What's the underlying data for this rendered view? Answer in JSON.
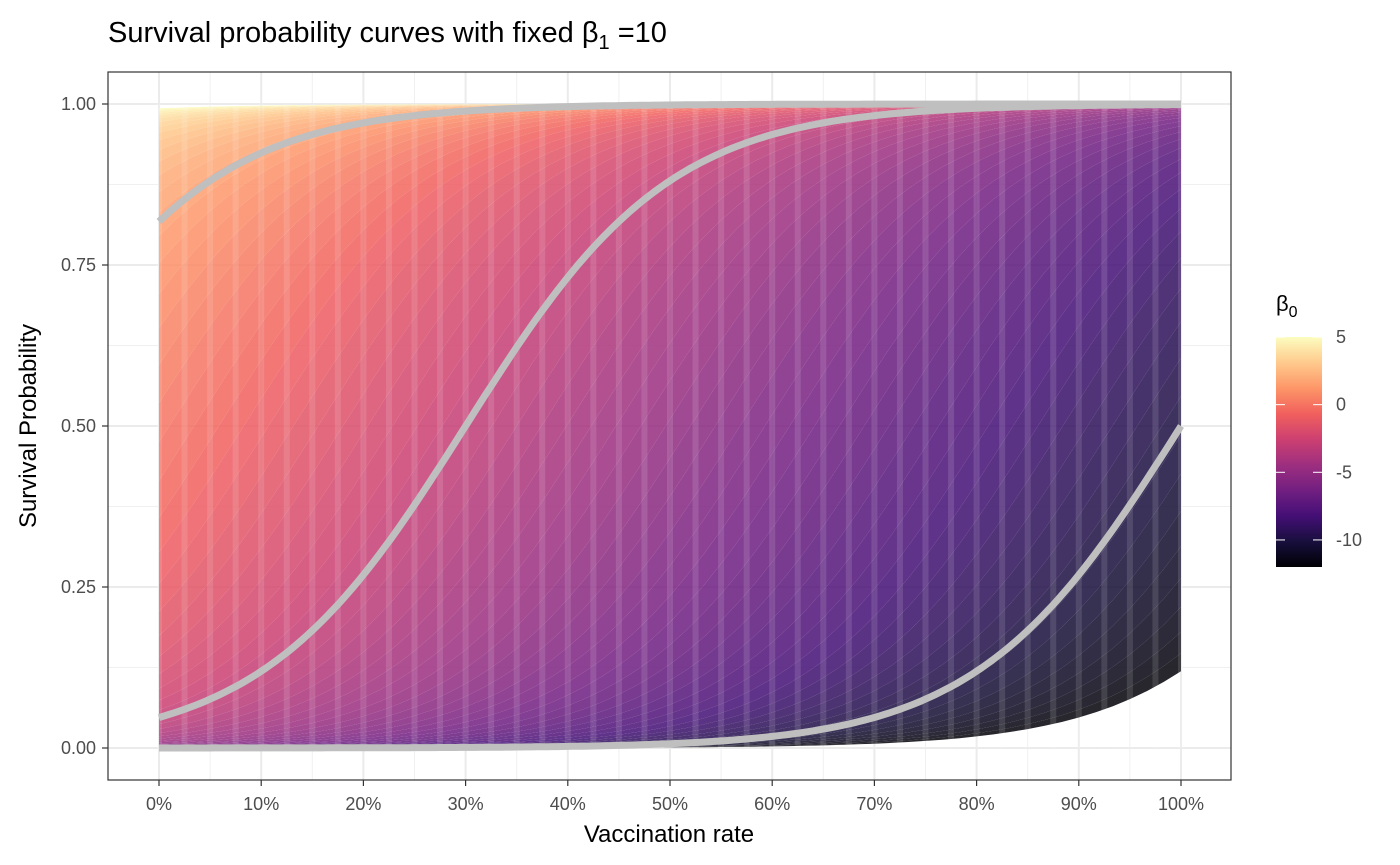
{
  "chart_data": {
    "type": "line",
    "title": {
      "prefix": "Survival probability curves with fixed ",
      "symbol": "β",
      "subscript": "1",
      "suffix": " =10"
    },
    "beta1": 10,
    "xlabel": "Vaccination rate",
    "ylabel": "Survival Probability",
    "xlim": [
      0,
      1
    ],
    "ylim": [
      0,
      1
    ],
    "x_ticks": [
      0,
      0.1,
      0.2,
      0.3,
      0.4,
      0.5,
      0.6,
      0.7,
      0.8,
      0.9,
      1.0
    ],
    "x_tick_labels": [
      "0%",
      "10%",
      "20%",
      "30%",
      "40%",
      "50%",
      "60%",
      "70%",
      "80%",
      "90%",
      "100%"
    ],
    "y_ticks": [
      0,
      0.25,
      0.5,
      0.75,
      1.0
    ],
    "y_tick_labels": [
      "0.00",
      "0.25",
      "0.50",
      "0.75",
      "1.00"
    ],
    "grid": true,
    "curve_color": "#bfbfbf",
    "series": [
      {
        "beta0": 1.5
      },
      {
        "beta0": -3
      },
      {
        "beta0": -10
      }
    ],
    "color_scale": {
      "name": "magma",
      "title_symbol": "β",
      "title_subscript": "0",
      "range": [
        -12,
        5
      ],
      "ticks": [
        5,
        0,
        -5,
        -10
      ],
      "tick_labels": [
        "5",
        "0",
        "-5",
        "-10"
      ],
      "stops": [
        "#000004",
        "#180f3d",
        "#440f76",
        "#721f81",
        "#9e2f7f",
        "#cd4071",
        "#f1605d",
        "#fd9668",
        "#feca8d",
        "#fcfdbf"
      ]
    },
    "legend_position": "right"
  }
}
